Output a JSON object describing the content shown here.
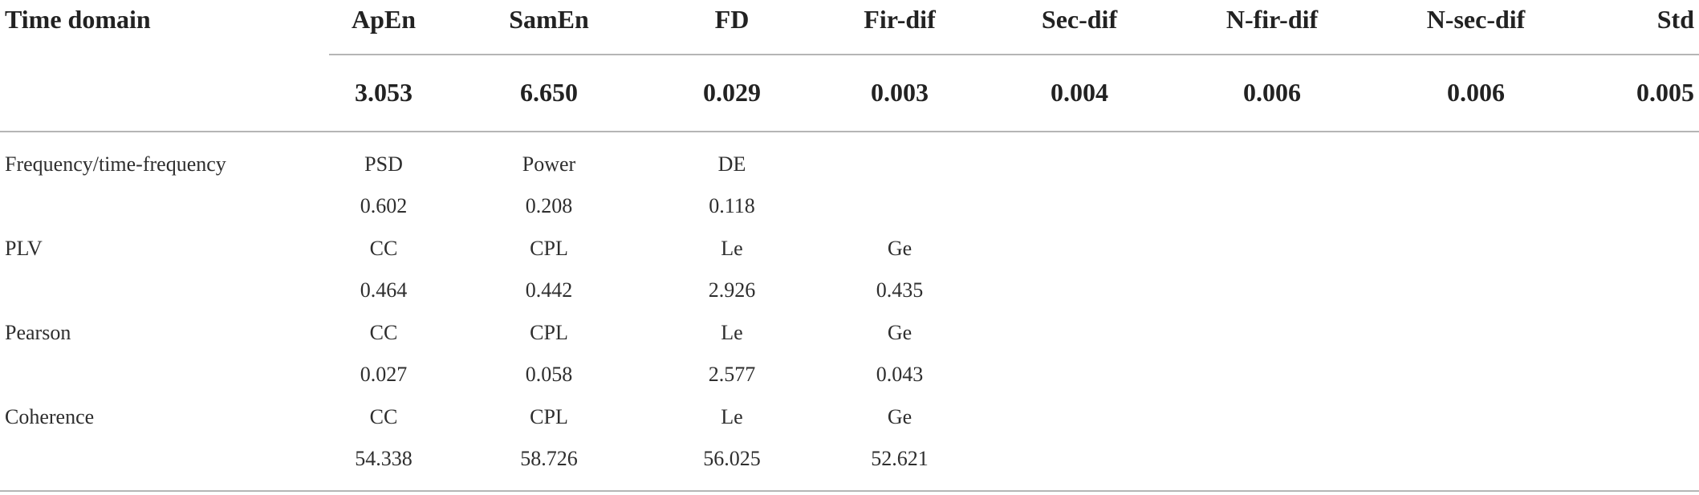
{
  "table": {
    "header": [
      "Time domain",
      "ApEn",
      "SamEn",
      "FD",
      "Fir-dif",
      "Sec-dif",
      "N-fir-dif",
      "N-sec-dif",
      "Std"
    ],
    "time_values": [
      "3.053",
      "6.650",
      "0.029",
      "0.003",
      "0.004",
      "0.006",
      "0.006",
      "0.005"
    ],
    "rows": [
      {
        "label": "Frequency/time-frequency",
        "names": [
          "PSD",
          "Power",
          "DE"
        ],
        "values": [
          "0.602",
          "0.208",
          "0.118"
        ]
      },
      {
        "label": "PLV",
        "names": [
          "CC",
          "CPL",
          "Le",
          "Ge"
        ],
        "values": [
          "0.464",
          "0.442",
          "2.926",
          "0.435"
        ]
      },
      {
        "label": "Pearson",
        "names": [
          "CC",
          "CPL",
          "Le",
          "Ge"
        ],
        "values": [
          "0.027",
          "0.058",
          "2.577",
          "0.043"
        ]
      },
      {
        "label": "Coherence",
        "names": [
          "CC",
          "CPL",
          "Le",
          "Ge"
        ],
        "values": [
          "54.338",
          "58.726",
          "56.025",
          "52.621"
        ]
      }
    ]
  }
}
